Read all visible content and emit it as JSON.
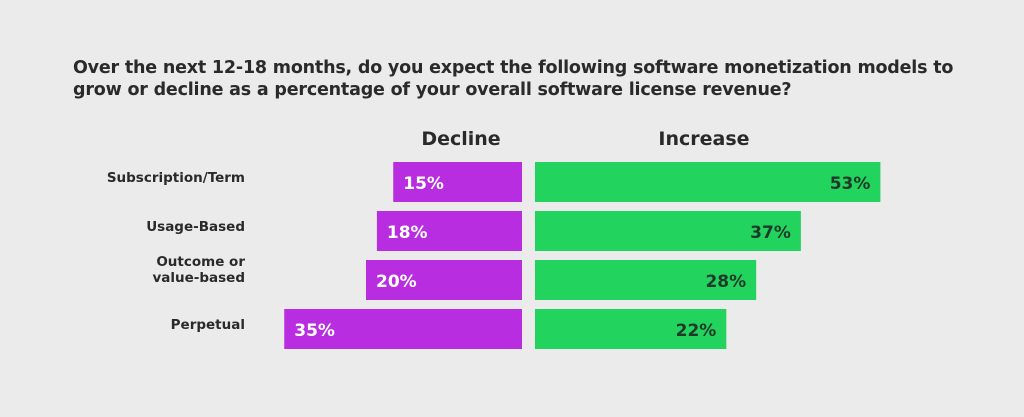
{
  "chart_data": {
    "type": "bar",
    "orientation": "horizontal-diverging",
    "title": "Over the next 12-18 months, do you expect the following software monetization models to grow or decline as a percentage of your overall software license revenue?",
    "categories": [
      [
        "Subscription/Term"
      ],
      [
        "Usage-Based"
      ],
      [
        "Outcome or",
        "value-based"
      ],
      [
        "Perpetual"
      ]
    ],
    "series": [
      {
        "name": "Decline",
        "values": [
          15,
          18,
          20,
          35
        ],
        "color": "#b82de0",
        "label_color": "#ffffff"
      },
      {
        "name": "Increase",
        "values": [
          53,
          37,
          28,
          22
        ],
        "color": "#22d35e",
        "label_color": "#1f3a2a"
      }
    ],
    "unit": "%",
    "background": "#ebebeb",
    "grid": false
  }
}
